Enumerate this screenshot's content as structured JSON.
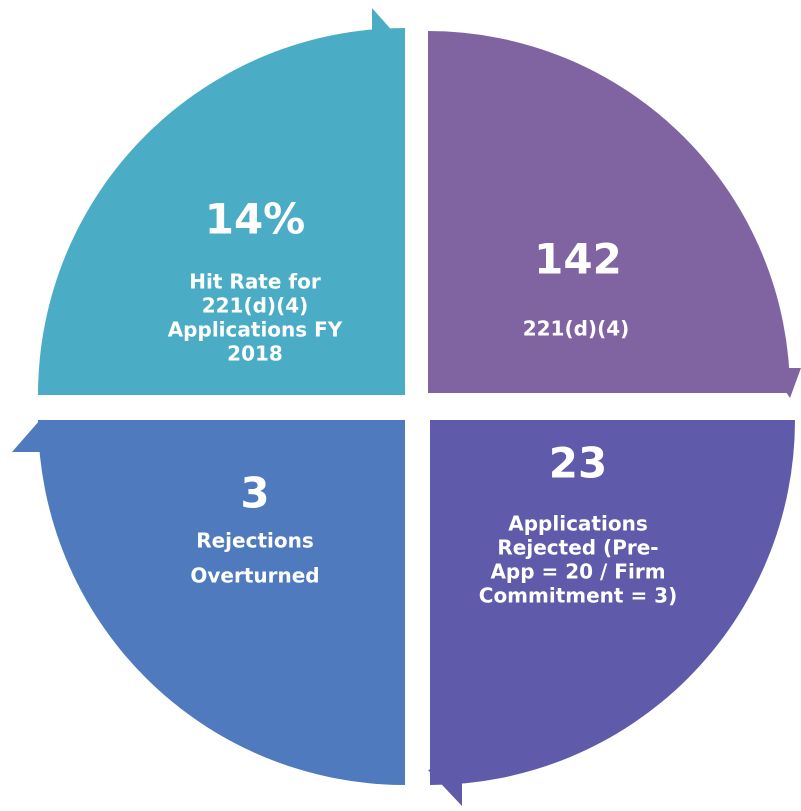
{
  "quadrants": [
    {
      "value": "14%",
      "lines": [
        "Hit Rate for",
        "221(d)(4)",
        "Applications FY",
        "2018"
      ]
    },
    {
      "value": "142",
      "lines": [
        "221(d)(4)"
      ]
    },
    {
      "value": "23",
      "lines": [
        "Applications",
        "Rejected (Pre-",
        "App = 20 / Firm",
        "Commitment = 3)"
      ]
    },
    {
      "value": "3",
      "lines": [
        "Rejections",
        "Overturned"
      ]
    }
  ]
}
